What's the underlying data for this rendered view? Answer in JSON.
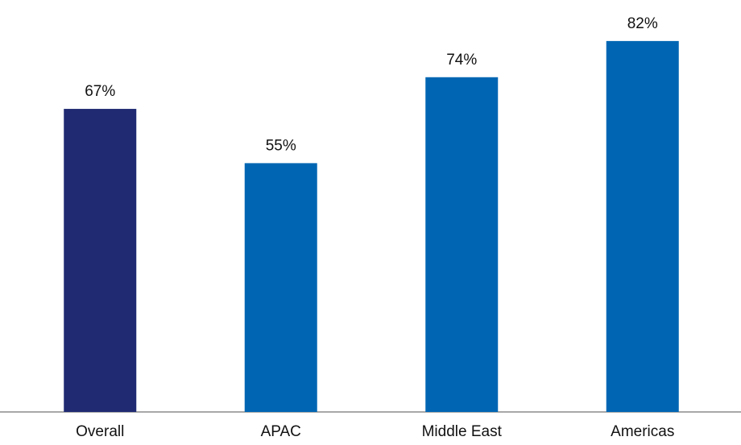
{
  "chart_data": {
    "type": "bar",
    "categories": [
      "Overall",
      "APAC",
      "Middle East",
      "Americas"
    ],
    "values": [
      67,
      55,
      74,
      82
    ],
    "value_labels": [
      "67%",
      "55%",
      "74%",
      "82%"
    ],
    "colors": [
      "#1f2a72",
      "#0066b3",
      "#0066b3",
      "#0066b3"
    ],
    "ylim": [
      0,
      90
    ]
  }
}
